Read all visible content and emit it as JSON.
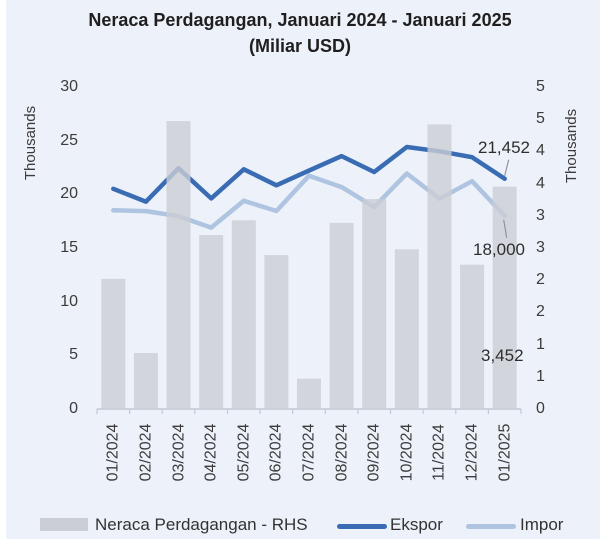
{
  "title": {
    "line1": "Neraca Perdagangan, Januari 2024 - Januari 2025",
    "line2": "(Miliar USD)"
  },
  "axes": {
    "left": {
      "title": "Thousands",
      "tick_values": [
        30,
        25,
        20,
        15,
        10,
        5,
        0
      ],
      "tick_labels": [
        "30",
        "25",
        "20",
        "15",
        "10",
        "5",
        "0"
      ],
      "range": [
        0,
        30000
      ]
    },
    "right": {
      "title": "Thousands",
      "tick_values": [
        5,
        4.5,
        4,
        3.5,
        3,
        2.5,
        2,
        1.5,
        1,
        0.5,
        0
      ],
      "tick_labels": [
        "5",
        "5",
        "4",
        "4",
        "3",
        "3",
        "2",
        "2",
        "1",
        "1",
        "0"
      ],
      "range": [
        0,
        5000
      ]
    },
    "x": {
      "labels": [
        "01/2024",
        "02/2024",
        "03/2024",
        "04/2024",
        "05/2024",
        "06/2024",
        "07/2024",
        "08/2024",
        "09/2024",
        "10/2024",
        "11/2024",
        "12/2024",
        "01/2025"
      ]
    }
  },
  "chart_data": {
    "type": "combo",
    "title": "Neraca Perdagangan, Januari 2024 - Januari 2025 (Miliar USD)",
    "categories": [
      "01/2024",
      "02/2024",
      "03/2024",
      "04/2024",
      "05/2024",
      "06/2024",
      "07/2024",
      "08/2024",
      "09/2024",
      "10/2024",
      "11/2024",
      "12/2024",
      "01/2025"
    ],
    "series": [
      {
        "name": "Neraca Perdagangan - RHS",
        "type": "bar",
        "axis": "right",
        "color": "#CBCED5",
        "values": [
          2020,
          870,
          4470,
          2700,
          2930,
          2390,
          470,
          2890,
          3260,
          2480,
          4420,
          2240,
          3452
        ]
      },
      {
        "name": "Ekspor",
        "type": "line",
        "axis": "left",
        "color": "#3A6CB4",
        "values": [
          20520,
          19310,
          22430,
          19620,
          22330,
          20840,
          22210,
          23560,
          22080,
          24410,
          24010,
          23460,
          21452
        ]
      },
      {
        "name": "Impor",
        "type": "line",
        "axis": "left",
        "color": "#AEC4E0",
        "values": [
          18510,
          18440,
          17960,
          16900,
          19400,
          18450,
          21740,
          20670,
          18820,
          21940,
          19590,
          21220,
          18000
        ]
      }
    ],
    "ylabel_left": "Thousands",
    "ylabel_right": "Thousands",
    "ylim_left": [
      0,
      30000
    ],
    "ylim_right": [
      0,
      5000
    ],
    "grid": false,
    "legend_position": "bottom",
    "annotations": [
      {
        "text": "21,452",
        "series": "Ekspor",
        "category": "01/2025",
        "value": 21452
      },
      {
        "text": "18,000",
        "series": "Impor",
        "category": "01/2025",
        "value": 18000
      },
      {
        "text": "3,452",
        "series": "Neraca Perdagangan - RHS",
        "category": "01/2025",
        "value": 3452
      }
    ]
  },
  "legend": [
    {
      "label": "Neraca Perdagangan - RHS",
      "swatch": "bar",
      "color": "#CBCED5"
    },
    {
      "label": "Ekspor",
      "swatch": "line",
      "color": "#3A6CB4"
    },
    {
      "label": "Impor",
      "swatch": "line",
      "color": "#AEC4E0"
    }
  ],
  "colors": {
    "background": "#EDF1F9",
    "bar": "#CBCED5",
    "ekspor": "#3A6CB4",
    "impor": "#AEC4E0",
    "axis_line": "#C3C8D2",
    "text": "#3C3C3C",
    "leader": "#8E939C"
  }
}
